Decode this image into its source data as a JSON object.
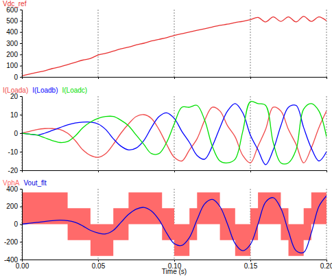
{
  "chart_data": [
    {
      "type": "line",
      "legend": "top-left",
      "grid": true,
      "tick_labels": "y",
      "x": [
        0,
        0.005,
        0.01,
        0.015,
        0.02,
        0.025,
        0.03,
        0.035,
        0.04,
        0.045,
        0.05,
        0.055,
        0.06,
        0.065,
        0.07,
        0.075,
        0.08,
        0.085,
        0.09,
        0.095,
        0.1,
        0.105,
        0.11,
        0.115,
        0.12,
        0.125,
        0.13,
        0.135,
        0.14,
        0.145,
        0.15,
        0.155,
        0.16,
        0.165,
        0.17,
        0.175,
        0.18,
        0.185,
        0.19,
        0.195,
        0.2
      ],
      "xlim": [
        0,
        0.2
      ],
      "xticks": [
        0,
        0.05,
        0.1,
        0.15,
        0.2
      ],
      "ylim": [
        0,
        600
      ],
      "yticks": [
        0,
        100,
        200,
        300,
        400,
        500,
        600
      ],
      "series": [
        {
          "name": "Vdc_ref",
          "color": "#e83030",
          "values": [
            10,
            25,
            40,
            55,
            75,
            90,
            110,
            130,
            150,
            165,
            195,
            210,
            230,
            250,
            265,
            285,
            300,
            320,
            335,
            350,
            370,
            385,
            400,
            415,
            430,
            445,
            460,
            470,
            485,
            495,
            510,
            530,
            490,
            535,
            495,
            535,
            490,
            540,
            495,
            535,
            500
          ]
        }
      ]
    },
    {
      "type": "line",
      "legend": "top-left",
      "grid": true,
      "tick_labels": "y",
      "x": [
        0,
        0.005,
        0.01,
        0.015,
        0.02,
        0.025,
        0.03,
        0.035,
        0.04,
        0.045,
        0.05,
        0.055,
        0.06,
        0.065,
        0.07,
        0.075,
        0.08,
        0.085,
        0.09,
        0.095,
        0.1,
        0.105,
        0.11,
        0.115,
        0.12,
        0.125,
        0.13,
        0.135,
        0.14,
        0.145,
        0.15,
        0.155,
        0.16,
        0.165,
        0.17,
        0.175,
        0.18,
        0.185,
        0.19,
        0.195,
        0.2
      ],
      "xlim": [
        0,
        0.2
      ],
      "xticks": [
        0,
        0.05,
        0.1,
        0.15,
        0.2
      ],
      "ylim": [
        -20,
        20
      ],
      "yticks": [
        -20,
        -10,
        0,
        10,
        20
      ],
      "series": [
        {
          "name": "I(Loada)",
          "color": "#f04848",
          "values": [
            0,
            1,
            2,
            2.5,
            2.5,
            2,
            0,
            -4,
            -9,
            -12,
            -13,
            -11,
            -6,
            0,
            5,
            9,
            10,
            8,
            2,
            -6,
            -13,
            -15,
            -9,
            -3,
            7,
            14,
            12,
            4,
            -2,
            -12,
            -16,
            -7,
            2,
            14,
            12,
            2,
            -6,
            -16,
            -8,
            3,
            12
          ]
        },
        {
          "name": "I(Loadb)",
          "color": "#0000ff",
          "values": [
            0,
            -0.5,
            -1,
            0,
            1.5,
            3,
            4.5,
            5.5,
            6,
            6,
            5,
            2,
            -3,
            -7,
            -9,
            -8,
            -4,
            3,
            9,
            11,
            8,
            1,
            -5,
            -12,
            -14,
            -7,
            3,
            12,
            16,
            11,
            -1,
            -9,
            -17,
            -9,
            4,
            14,
            15,
            3,
            -8,
            -15,
            -10
          ]
        },
        {
          "name": "I(Loadc)",
          "color": "#00e000",
          "values": [
            0,
            -0.5,
            -1,
            -2.5,
            -4,
            -5,
            -4.5,
            -1.5,
            3,
            6,
            8,
            9,
            9,
            7,
            4,
            -1,
            -6,
            -11,
            -11,
            -5,
            5,
            14,
            14,
            15,
            7,
            -7,
            -15,
            -16,
            -14,
            1,
            17,
            16,
            15,
            -5,
            -16,
            -16,
            -9,
            13,
            16,
            12,
            -2
          ]
        }
      ]
    },
    {
      "type": "line",
      "legend": "top-left",
      "grid": true,
      "x": [
        0,
        0.005,
        0.01,
        0.015,
        0.02,
        0.025,
        0.03,
        0.035,
        0.04,
        0.045,
        0.05,
        0.055,
        0.06,
        0.065,
        0.07,
        0.075,
        0.08,
        0.085,
        0.09,
        0.095,
        0.1,
        0.105,
        0.11,
        0.115,
        0.12,
        0.125,
        0.13,
        0.135,
        0.14,
        0.145,
        0.15,
        0.155,
        0.16,
        0.165,
        0.17,
        0.175,
        0.18,
        0.185,
        0.19,
        0.195,
        0.2
      ],
      "xlabel": "Time (s)",
      "xlim": [
        0,
        0.2
      ],
      "xticks": [
        {
          "value": 0,
          "label": "0.00"
        },
        {
          "value": 0.05,
          "label": "0.05"
        },
        {
          "value": 0.1,
          "label": "0.10"
        },
        {
          "value": 0.15,
          "label": "0.15"
        },
        {
          "value": 0.2,
          "label": "0.20"
        }
      ],
      "ylim": [
        -400,
        400
      ],
      "yticks": [
        -400,
        -200,
        0,
        200,
        400
      ],
      "series": [
        {
          "name": "VphA",
          "color": "#ff6a6a",
          "type": "area",
          "x": [
            0,
            0.03,
            0.045,
            0.06,
            0.07,
            0.092,
            0.1,
            0.11,
            0.115,
            0.13,
            0.14,
            0.15,
            0.155,
            0.17,
            0.175,
            0.185,
            0.19,
            0.2
          ],
          "low": [
            0,
            -180,
            -360,
            -180,
            0,
            -180,
            -360,
            -180,
            0,
            -180,
            -360,
            -180,
            0,
            -180,
            -360,
            -180,
            0,
            0
          ],
          "high": [
            360,
            180,
            0,
            180,
            360,
            180,
            0,
            180,
            360,
            180,
            0,
            180,
            360,
            180,
            0,
            180,
            360,
            360
          ]
        },
        {
          "name": "Vout_flt",
          "color": "#0000e0",
          "values": [
            0,
            10,
            20,
            30,
            40,
            45,
            40,
            20,
            -20,
            -70,
            -100,
            -110,
            -70,
            20,
            110,
            170,
            190,
            150,
            50,
            -100,
            -220,
            -240,
            -150,
            50,
            230,
            280,
            200,
            0,
            -220,
            -300,
            -230,
            0,
            250,
            300,
            180,
            -80,
            -300,
            -320,
            -100,
            200,
            320
          ]
        }
      ]
    }
  ]
}
